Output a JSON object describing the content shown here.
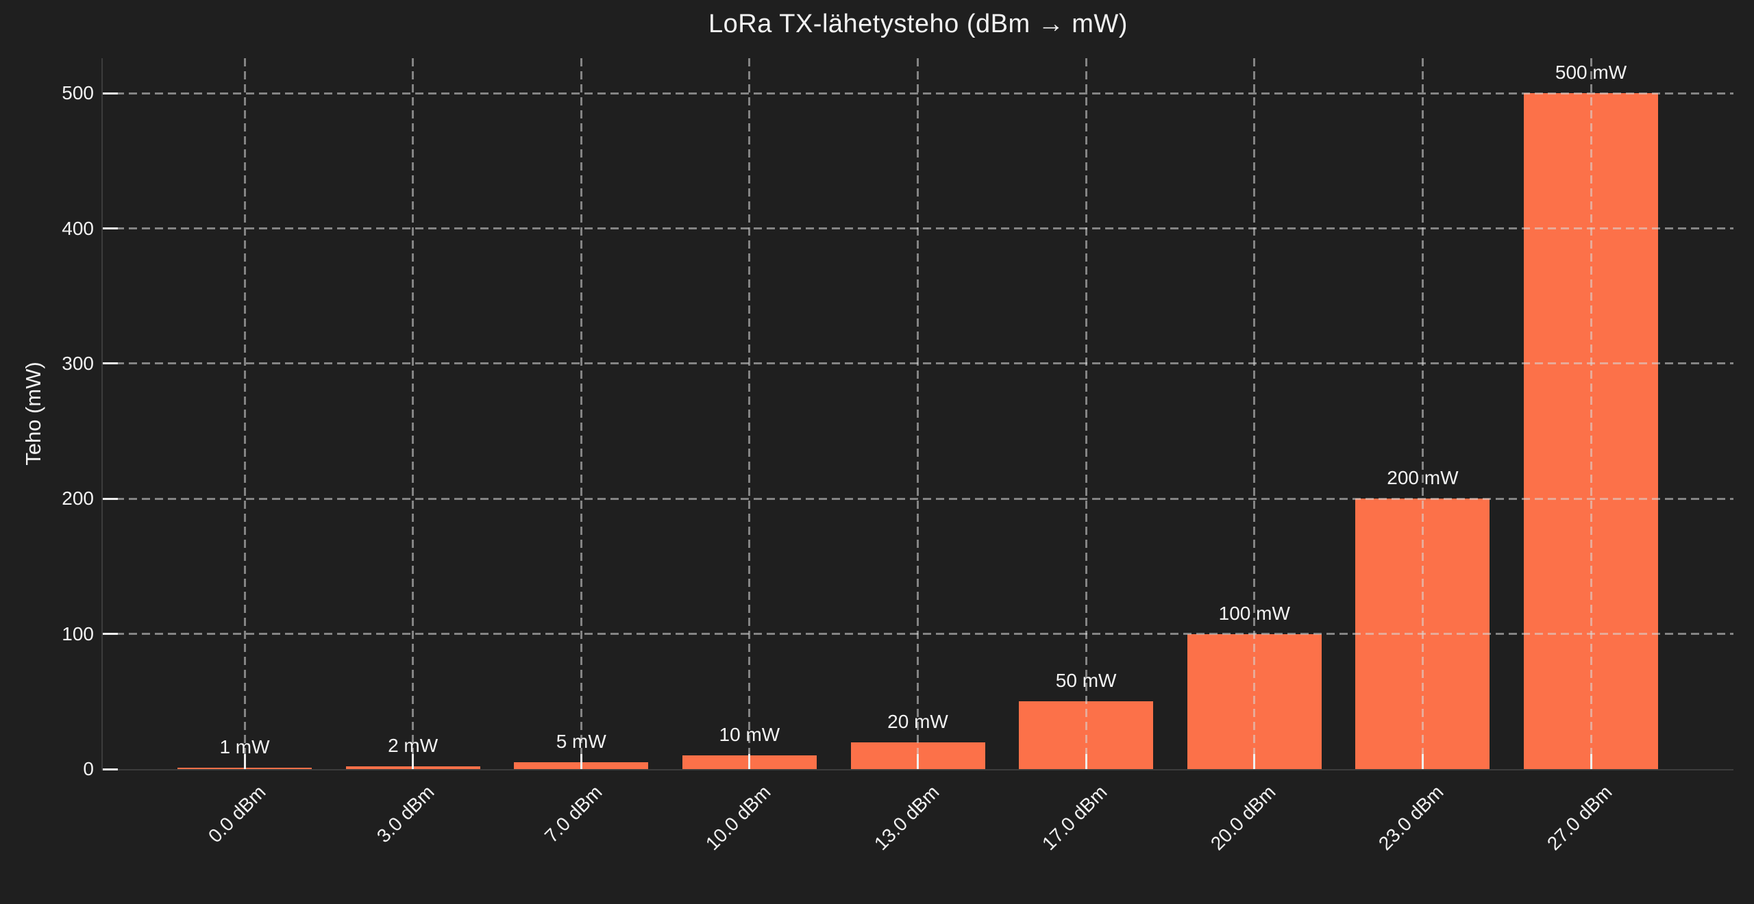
{
  "chart_data": {
    "type": "bar",
    "title": "LoRa TX-lähetysteho (dBm → mW)",
    "xlabel": "",
    "ylabel": "Teho (mW)",
    "categories": [
      "0.0 dBm",
      "3.0 dBm",
      "7.0 dBm",
      "10.0 dBm",
      "13.0 dBm",
      "17.0 dBm",
      "20.0 dBm",
      "23.0 dBm",
      "27.0 dBm"
    ],
    "values": [
      1,
      2,
      5,
      10,
      20,
      50,
      100,
      200,
      500
    ],
    "bar_labels": [
      "1 mW",
      "2 mW",
      "5 mW",
      "10 mW",
      "20 mW",
      "50 mW",
      "100 mW",
      "200 mW",
      "500 mW"
    ],
    "yticks": [
      0,
      100,
      200,
      300,
      400,
      500
    ],
    "ytick_labels": [
      "0",
      "100",
      "200",
      "300",
      "400",
      "500"
    ],
    "ylim": [
      0,
      526
    ],
    "grid": true,
    "grid_style": "dashed",
    "legend_position": "none",
    "colors": {
      "background": "#1F1F1F",
      "bar": "#FC7149",
      "text": "#F2F2F2",
      "grid": "#D8D8D8",
      "spine": "#3C3C3C",
      "tick": "#F0F0F0"
    }
  }
}
